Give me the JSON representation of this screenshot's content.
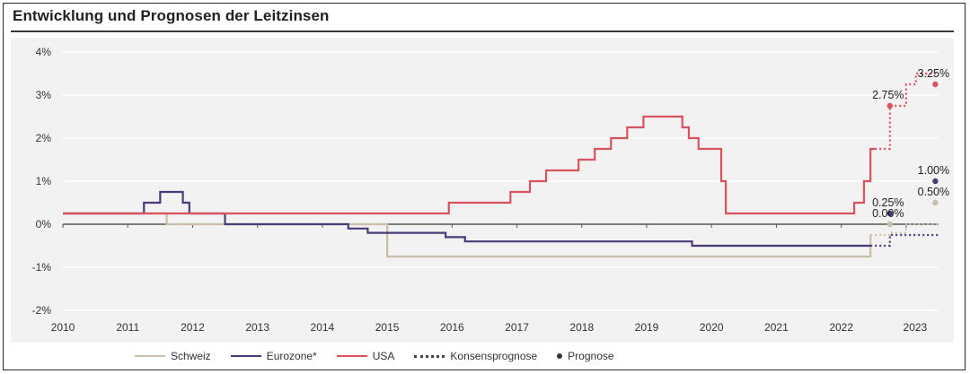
{
  "title": "Entwicklung und Prognosen der Leitzinsen",
  "legend": {
    "schweiz": "Schweiz",
    "eurozone": "Eurozone*",
    "usa": "USA",
    "konsens": "Konsensprognose",
    "prognose": "Prognose"
  },
  "colors": {
    "schweiz": "#c9bea8",
    "eurozone": "#4b3a78",
    "usa": "#d9535f",
    "gridline": "#ffffff",
    "zeroline": "#555555"
  },
  "chart_data": {
    "type": "line",
    "title": "Entwicklung und Prognosen der Leitzinsen",
    "xlim": [
      2010,
      2023.5
    ],
    "ylim": [
      -2,
      4
    ],
    "x_ticks": [
      2010,
      2011,
      2012,
      2013,
      2014,
      2015,
      2016,
      2017,
      2018,
      2019,
      2020,
      2021,
      2022,
      2023
    ],
    "x_tick_labels": [
      "2010",
      "2011",
      "2012",
      "2013",
      "2014",
      "2015",
      "2016",
      "2017",
      "2018",
      "2019",
      "2020",
      "2021",
      "2022",
      "2023"
    ],
    "y_ticks": [
      4,
      3,
      2,
      1,
      0,
      -1,
      -2
    ],
    "y_tick_labels": [
      "4%",
      "3%",
      "2%",
      "1%",
      "0%",
      "-1%",
      "-2%"
    ],
    "grid": true,
    "legend_position": "bottom",
    "series": [
      {
        "name": "Schweiz",
        "step": true,
        "x": [
          2010,
          2011.6,
          2015.0,
          2022.45
        ],
        "y": [
          0.25,
          0.0,
          -0.75,
          -0.25
        ]
      },
      {
        "name": "Eurozone*",
        "step": true,
        "x": [
          2010,
          2011.25,
          2011.5,
          2011.85,
          2011.95,
          2012.5,
          2014.4,
          2014.7,
          2015.9,
          2016.2,
          2019.7,
          2022.45
        ],
        "y": [
          0.25,
          0.5,
          0.75,
          0.5,
          0.25,
          0.0,
          -0.1,
          -0.2,
          -0.3,
          -0.4,
          -0.5,
          -0.5
        ]
      },
      {
        "name": "USA",
        "step": true,
        "x": [
          2010,
          2015.95,
          2016.9,
          2017.2,
          2017.45,
          2017.95,
          2018.2,
          2018.45,
          2018.7,
          2018.95,
          2019.55,
          2019.65,
          2019.8,
          2020.15,
          2020.22,
          2022.2,
          2022.35,
          2022.45,
          2022.52
        ],
        "y": [
          0.25,
          0.5,
          0.75,
          1.0,
          1.25,
          1.5,
          1.75,
          2.0,
          2.25,
          2.5,
          2.25,
          2.0,
          1.75,
          1.0,
          0.25,
          0.5,
          1.0,
          1.75,
          1.75
        ]
      }
    ],
    "konsensprognose": [
      {
        "name": "USA",
        "x": [
          2022.52,
          2022.75,
          2022.75,
          2023.0,
          2023.0,
          2023.15,
          2023.15,
          2023.5
        ],
        "y": [
          1.75,
          1.75,
          2.75,
          2.75,
          3.25,
          3.25,
          3.5,
          3.5
        ]
      },
      {
        "name": "Eurozone*",
        "x": [
          2022.45,
          2022.75,
          2022.75,
          2023.5
        ],
        "y": [
          -0.5,
          -0.5,
          -0.25,
          -0.25
        ]
      },
      {
        "name": "Schweiz",
        "x": [
          2022.45,
          2022.75,
          2022.75,
          2023.0,
          2023.0,
          2023.5
        ],
        "y": [
          -0.25,
          -0.25,
          -0.2,
          -0.2,
          0.0,
          0.0
        ]
      }
    ],
    "prognose_points": [
      {
        "series": "USA",
        "x": 2022.75,
        "y": 2.75,
        "label": "2.75%"
      },
      {
        "series": "USA",
        "x": 2023.45,
        "y": 3.25,
        "label": "3.25%"
      },
      {
        "series": "Eurozone*",
        "x": 2022.75,
        "y": 0.25,
        "label": "0.25%"
      },
      {
        "series": "Eurozone*",
        "x": 2023.45,
        "y": 1.0,
        "label": "1.00%"
      },
      {
        "series": "Schweiz",
        "x": 2022.75,
        "y": 0.0,
        "label": "0.00%"
      },
      {
        "series": "Schweiz",
        "x": 2023.45,
        "y": 0.5,
        "label": "0.50%"
      }
    ]
  }
}
